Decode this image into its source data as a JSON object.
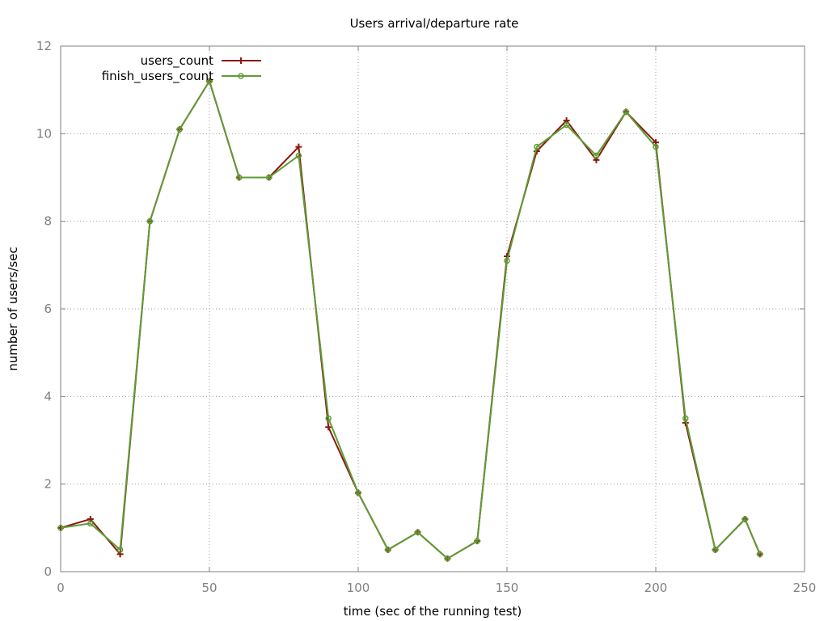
{
  "chart_data": {
    "type": "line",
    "title": "Users arrival/departure rate",
    "xlabel": "time (sec of the running test)",
    "ylabel": "number of users/sec",
    "xlim": [
      0,
      250
    ],
    "ylim": [
      0,
      12
    ],
    "x_ticks": [
      0,
      50,
      100,
      150,
      200,
      250
    ],
    "y_ticks": [
      0,
      2,
      4,
      6,
      8,
      10,
      12
    ],
    "grid": true,
    "legend_position": "top-left",
    "x": [
      0,
      10,
      20,
      30,
      40,
      50,
      60,
      70,
      80,
      90,
      100,
      110,
      120,
      130,
      140,
      150,
      160,
      170,
      180,
      190,
      200,
      210,
      220,
      230,
      235
    ],
    "series": [
      {
        "name": "users_count",
        "color": "#8b1a0e",
        "marker": "plus",
        "values": [
          1.0,
          1.2,
          0.4,
          8.0,
          10.1,
          11.2,
          9.0,
          9.0,
          9.7,
          3.3,
          1.8,
          0.5,
          0.9,
          0.3,
          0.7,
          7.2,
          9.6,
          10.3,
          9.4,
          10.5,
          9.8,
          3.4,
          0.5,
          1.2,
          0.4
        ]
      },
      {
        "name": "finish_users_count",
        "color": "#5e9c36",
        "marker": "circle",
        "values": [
          1.0,
          1.1,
          0.5,
          8.0,
          10.1,
          11.2,
          9.0,
          9.0,
          9.5,
          3.5,
          1.8,
          0.5,
          0.9,
          0.3,
          0.7,
          7.1,
          9.7,
          10.2,
          9.5,
          10.5,
          9.7,
          3.5,
          0.5,
          1.2,
          0.4
        ]
      }
    ]
  }
}
